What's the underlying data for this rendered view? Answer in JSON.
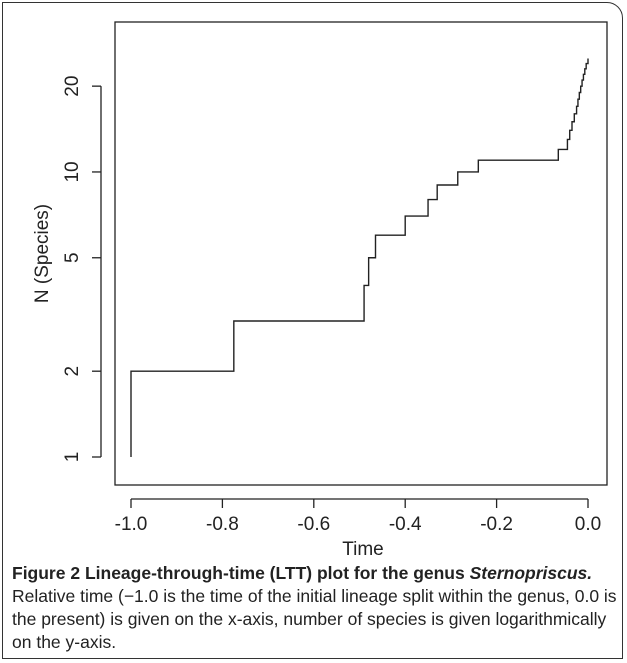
{
  "chart_data": {
    "type": "line",
    "step": true,
    "xlabel": "Time",
    "ylabel": "N (Species)",
    "xlim": [
      -1.0,
      0.0
    ],
    "ylim": [
      1,
      27
    ],
    "yscale": "log",
    "xticks": [
      -1.0,
      -0.8,
      -0.6,
      -0.4,
      -0.2,
      0.0
    ],
    "xtick_labels": [
      "-1.0",
      "-0.8",
      "-0.6",
      "-0.4",
      "-0.2",
      "0.0"
    ],
    "yticks": [
      1,
      2,
      5,
      10,
      20
    ],
    "ytick_labels": [
      "1",
      "2",
      "5",
      "10",
      "20"
    ],
    "grid": false,
    "legend": "none",
    "line_color": "#222222",
    "series": [
      {
        "x": [
          -1.0,
          -0.775,
          -0.49,
          -0.48,
          -0.465,
          -0.4,
          -0.35,
          -0.33,
          -0.285,
          -0.24,
          -0.065,
          -0.045,
          -0.04,
          -0.035,
          -0.03,
          -0.025,
          -0.022,
          -0.019,
          -0.016,
          -0.013,
          -0.01,
          -0.007,
          -0.004,
          0.0
        ],
        "y": [
          2,
          3,
          4,
          5,
          6,
          7,
          8,
          9,
          10,
          11,
          12,
          13,
          14,
          15,
          16,
          17,
          18,
          19,
          20,
          21,
          22,
          23,
          24,
          25
        ]
      }
    ]
  },
  "caption": {
    "label": "Figure 2",
    "title": "Lineage-through-time (LTT) plot for the genus",
    "genus": "Sternopriscus.",
    "text": "Relative time (−1.0 is the time of the initial lineage split within the genus, 0.0 is the present) is given on the x-axis, number of species is given logarithmically on the y-axis."
  }
}
